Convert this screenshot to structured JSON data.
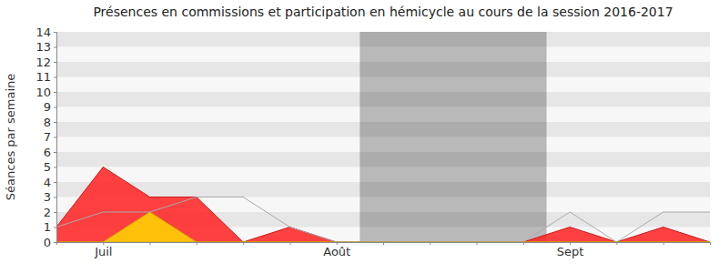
{
  "chart_data": {
    "type": "area",
    "title": "Présences en commissions et participation en hémicycle au cours de la session 2016-2017",
    "y_label": "Séances par semaine",
    "categories": [
      null,
      "Juil",
      null,
      null,
      null,
      null,
      "Août",
      null,
      null,
      null,
      null,
      "Sept",
      null,
      null,
      null
    ],
    "shaded_range": [
      7,
      10
    ],
    "series": [
      {
        "type": "area",
        "color": "#ff2020",
        "values": [
          1,
          5,
          3,
          3,
          0,
          1,
          0,
          0,
          0,
          0,
          0,
          1,
          0,
          1,
          0
        ]
      },
      {
        "type": "area",
        "color": "#ffd700",
        "values": [
          0,
          0,
          2,
          0,
          0,
          0,
          0,
          0,
          0,
          0,
          0,
          0,
          0,
          0,
          0
        ]
      },
      {
        "type": "line",
        "color": "#aaaaaa",
        "values": [
          1,
          2,
          2,
          3,
          3,
          1,
          0,
          0,
          0,
          0,
          0,
          2,
          0,
          2,
          2
        ]
      }
    ],
    "ylim": [
      0,
      14
    ],
    "yticks": [
      0,
      1,
      2,
      3,
      4,
      5,
      6,
      7,
      8,
      9,
      10,
      11,
      12,
      13,
      14
    ],
    "grid": true
  }
}
